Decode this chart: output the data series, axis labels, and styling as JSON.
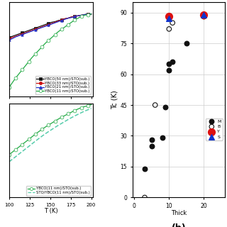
{
  "left_top": {
    "xlabel": "T (K)",
    "xlim": [
      100,
      202
    ],
    "ylim": [
      0.86,
      1.02
    ],
    "xticks": [
      100,
      125,
      150,
      175,
      200
    ],
    "yticks": [],
    "series": [
      {
        "label": "YBCO(50 nm)/STO(sub.)",
        "color": "#111111",
        "marker": "s",
        "markersize": 2.5,
        "linestyle": "-",
        "linewidth": 0.9,
        "markerfacecolor": "#111111",
        "markevery": 4,
        "x": [
          100,
          104,
          108,
          112,
          116,
          120,
          124,
          128,
          132,
          136,
          140,
          144,
          148,
          152,
          156,
          160,
          164,
          168,
          172,
          176,
          180,
          184,
          188,
          192,
          196,
          200
        ],
        "y": [
          0.96,
          0.962,
          0.964,
          0.966,
          0.968,
          0.97,
          0.972,
          0.974,
          0.976,
          0.978,
          0.98,
          0.982,
          0.984,
          0.986,
          0.987,
          0.989,
          0.99,
          0.992,
          0.993,
          0.995,
          0.996,
          0.997,
          0.998,
          0.999,
          1.0,
          1.0
        ]
      },
      {
        "label": "YBCO(33 nm)/STO(sub.)",
        "color": "#cc1111",
        "marker": "o",
        "markersize": 2.5,
        "linestyle": "-",
        "linewidth": 0.9,
        "markerfacecolor": "#cc1111",
        "markevery": 4,
        "x": [
          100,
          104,
          108,
          112,
          116,
          120,
          124,
          128,
          132,
          136,
          140,
          144,
          148,
          152,
          156,
          160,
          164,
          168,
          172,
          176,
          180,
          184,
          188,
          192,
          196,
          200
        ],
        "y": [
          0.958,
          0.96,
          0.962,
          0.964,
          0.966,
          0.968,
          0.97,
          0.972,
          0.974,
          0.976,
          0.978,
          0.98,
          0.982,
          0.984,
          0.986,
          0.988,
          0.99,
          0.992,
          0.993,
          0.995,
          0.996,
          0.997,
          0.998,
          0.999,
          1.0,
          1.0
        ]
      },
      {
        "label": "YBCO(21 nm)/STO(sub.)",
        "color": "#2233cc",
        "marker": "^",
        "markersize": 2.5,
        "linestyle": "-",
        "linewidth": 0.9,
        "markerfacecolor": "#2233cc",
        "markevery": 4,
        "x": [
          100,
          104,
          108,
          112,
          116,
          120,
          124,
          128,
          132,
          136,
          140,
          144,
          148,
          152,
          156,
          160,
          164,
          168,
          172,
          176,
          180,
          184,
          188,
          192,
          196,
          200
        ],
        "y": [
          0.956,
          0.958,
          0.961,
          0.963,
          0.965,
          0.967,
          0.969,
          0.971,
          0.973,
          0.975,
          0.977,
          0.979,
          0.981,
          0.983,
          0.985,
          0.987,
          0.989,
          0.991,
          0.993,
          0.994,
          0.996,
          0.997,
          0.998,
          0.999,
          1.0,
          1.0
        ]
      },
      {
        "label": "YBCO(11 nm)/STO(sub.)",
        "color": "#22aa44",
        "marker": "o",
        "markersize": 3.5,
        "linestyle": "-",
        "linewidth": 0.9,
        "markerfacecolor": "white",
        "markevery": 2,
        "x": [
          100,
          104,
          108,
          112,
          116,
          120,
          124,
          128,
          132,
          136,
          140,
          144,
          148,
          152,
          156,
          160,
          164,
          168,
          172,
          176,
          180,
          184,
          188,
          192,
          196,
          200
        ],
        "y": [
          0.875,
          0.883,
          0.891,
          0.898,
          0.905,
          0.912,
          0.919,
          0.926,
          0.932,
          0.938,
          0.944,
          0.95,
          0.955,
          0.96,
          0.965,
          0.97,
          0.974,
          0.978,
          0.982,
          0.986,
          0.99,
          0.993,
          0.996,
          0.998,
          0.999,
          1.0
        ]
      }
    ]
  },
  "left_bottom": {
    "xlabel": "T (K)",
    "xlim": [
      100,
      202
    ],
    "ylim": [
      0.0,
      0.92
    ],
    "xticks": [
      100,
      125,
      150,
      175,
      200
    ],
    "yticks": [],
    "series": [
      {
        "label": "YBCO(11 nm)/STO(sub.)",
        "color": "#22aa44",
        "marker": "o",
        "markersize": 3.5,
        "linestyle": "-",
        "linewidth": 0.9,
        "markerfacecolor": "white",
        "markevery": 2,
        "x": [
          100,
          104,
          108,
          112,
          116,
          120,
          124,
          128,
          132,
          136,
          140,
          144,
          148,
          152,
          156,
          160,
          164,
          168,
          172,
          176,
          180,
          184,
          188,
          192,
          196,
          200
        ],
        "y": [
          0.42,
          0.445,
          0.47,
          0.495,
          0.52,
          0.545,
          0.57,
          0.596,
          0.621,
          0.645,
          0.668,
          0.69,
          0.71,
          0.73,
          0.75,
          0.769,
          0.787,
          0.804,
          0.82,
          0.837,
          0.853,
          0.868,
          0.881,
          0.892,
          0.9,
          0.91
        ]
      },
      {
        "label": "STO/YBCO(11 nm)/STO(sub.)",
        "color": "#55ccaa",
        "marker": "",
        "markersize": 0,
        "linestyle": "--",
        "linewidth": 1.1,
        "markerfacecolor": "none",
        "markevery": 2,
        "x": [
          100,
          104,
          108,
          112,
          116,
          120,
          124,
          128,
          132,
          136,
          140,
          144,
          148,
          152,
          156,
          160,
          164,
          168,
          172,
          176,
          180,
          184,
          188,
          192,
          196,
          200
        ],
        "y": [
          0.35,
          0.375,
          0.4,
          0.426,
          0.451,
          0.476,
          0.501,
          0.527,
          0.552,
          0.577,
          0.601,
          0.624,
          0.646,
          0.667,
          0.688,
          0.708,
          0.727,
          0.746,
          0.765,
          0.783,
          0.8,
          0.816,
          0.832,
          0.847,
          0.86,
          0.872
        ]
      }
    ]
  },
  "right": {
    "xlabel": "Thick",
    "ylabel": "Tc (K)",
    "xlim": [
      -0.5,
      26
    ],
    "ylim": [
      0,
      95
    ],
    "xticks": [
      0,
      10,
      20
    ],
    "yticks": [
      0,
      15,
      30,
      45,
      60,
      75,
      90
    ],
    "label_b": "(b)",
    "filled_circles": {
      "label": "M",
      "color": "#111111",
      "x": [
        3,
        5,
        5,
        8,
        9,
        10,
        10,
        11,
        15,
        20
      ],
      "y": [
        14,
        25,
        28,
        29,
        44,
        62,
        65,
        66,
        75,
        88
      ]
    },
    "open_circles": {
      "label": "B",
      "color": "#111111",
      "x": [
        3,
        6,
        10,
        11
      ],
      "y": [
        0,
        45,
        82,
        85
      ]
    },
    "red_circles": {
      "label": "Y",
      "color": "#dd1111",
      "x": [
        10,
        20
      ],
      "y": [
        88,
        89
      ]
    },
    "blue_triangles": {
      "label": "S",
      "color": "#1133cc",
      "x": [
        10,
        20
      ],
      "y": [
        87,
        89
      ]
    }
  },
  "bg_color": "#ffffff",
  "grid_color": "#cccccc"
}
